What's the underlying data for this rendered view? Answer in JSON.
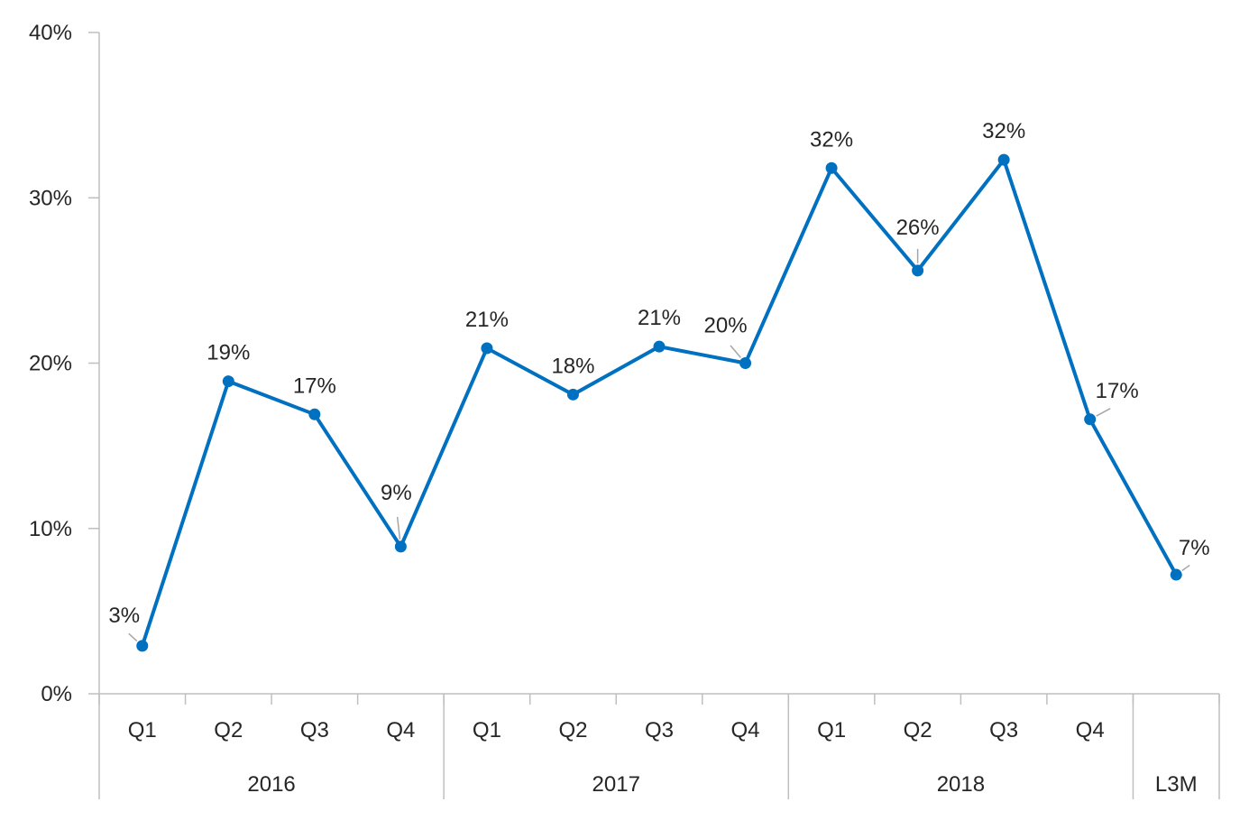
{
  "chart_data": {
    "type": "line",
    "title": "",
    "xlabel": "",
    "ylabel": "",
    "ylim": [
      0,
      40
    ],
    "y_ticks": [
      0,
      10,
      20,
      30,
      40
    ],
    "y_tick_labels": [
      "0%",
      "10%",
      "20%",
      "30%",
      "40%"
    ],
    "grid": false,
    "legend": "none",
    "categories": [
      "Q1",
      "Q2",
      "Q3",
      "Q4",
      "Q1",
      "Q2",
      "Q3",
      "Q4",
      "Q1",
      "Q2",
      "Q3",
      "Q4",
      ""
    ],
    "groups": [
      {
        "label": "2016",
        "span": 4
      },
      {
        "label": "2017",
        "span": 4
      },
      {
        "label": "2018",
        "span": 4
      },
      {
        "label": "L3M",
        "span": 1
      }
    ],
    "series": [
      {
        "color": "#0070C0",
        "values": [
          2.9,
          18.9,
          16.9,
          8.9,
          20.9,
          18.1,
          21.0,
          20.0,
          31.8,
          25.6,
          32.3,
          16.6,
          7.2
        ],
        "labels": [
          "3%",
          "19%",
          "17%",
          "9%",
          "21%",
          "18%",
          "21%",
          "20%",
          "32%",
          "26%",
          "32%",
          "17%",
          "7%"
        ]
      }
    ]
  }
}
